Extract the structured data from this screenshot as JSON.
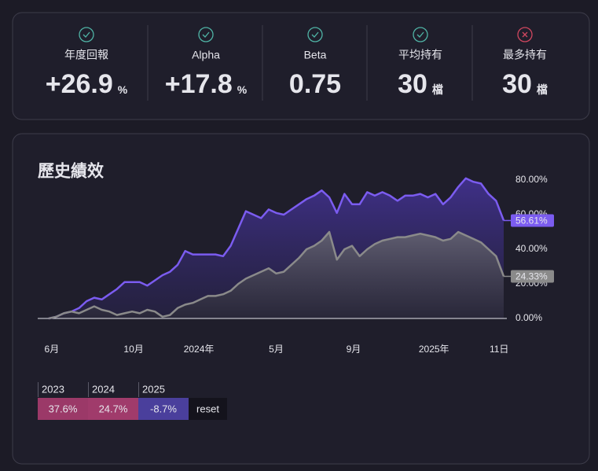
{
  "stats": [
    {
      "label": "年度回報",
      "value": "+26.9",
      "unit": "%",
      "status": "ok"
    },
    {
      "label": "Alpha",
      "value": "+17.8",
      "unit": "%",
      "status": "ok"
    },
    {
      "label": "Beta",
      "value": "0.75",
      "status": "ok"
    },
    {
      "label": "平均持有",
      "value": "30",
      "unit": "檔",
      "status": "ok"
    },
    {
      "label": "最多持有",
      "value": "30",
      "unit": "檔",
      "status": "fail"
    }
  ],
  "chart_data": {
    "type": "line",
    "title": "歷史績效",
    "x": [
      0,
      1,
      2,
      3,
      4,
      5,
      6,
      7,
      8,
      9,
      10,
      11,
      12,
      13,
      14,
      15,
      16,
      17,
      18,
      19,
      20,
      21,
      22,
      23,
      24,
      25,
      26,
      27,
      28,
      29,
      30,
      31,
      32,
      33,
      34,
      35,
      36,
      37,
      38,
      39,
      40,
      41,
      42,
      43,
      44,
      45,
      46,
      47,
      48,
      49,
      50,
      51,
      52,
      53,
      54,
      55,
      56,
      57,
      58,
      59,
      60
    ],
    "series": [
      {
        "color": "#7b5cf0",
        "end_label": "56.61%",
        "values": [
          0,
          1,
          3,
          4,
          6,
          10,
          12,
          11,
          14,
          17,
          21,
          21,
          21,
          19,
          22,
          25,
          27,
          31,
          39,
          37,
          37,
          37,
          37,
          36,
          42,
          52,
          62,
          60,
          58,
          63,
          61,
          60,
          63,
          66,
          69,
          71,
          74,
          70,
          61,
          72,
          66,
          66,
          73,
          71,
          73,
          71,
          68,
          71,
          71,
          72,
          70,
          72,
          66,
          70,
          76,
          81,
          79,
          78,
          72,
          68,
          56.61
        ]
      },
      {
        "color": "#8a8a8a",
        "end_label": "24.33%",
        "values": [
          0,
          1,
          3,
          4,
          3,
          5,
          7,
          5,
          4,
          2,
          3,
          4,
          3,
          5,
          4,
          1,
          2,
          6,
          8,
          9,
          11,
          13,
          13,
          14,
          16,
          20,
          23,
          25,
          27,
          29,
          26,
          27,
          31,
          35,
          40,
          42,
          45,
          50,
          34,
          40,
          42,
          36,
          40,
          43,
          45,
          46,
          47,
          47,
          48,
          49,
          48,
          47,
          45,
          46,
          50,
          48,
          46,
          44,
          40,
          36,
          24.33
        ]
      }
    ],
    "xlim": [
      0,
      60
    ],
    "xticks": [
      {
        "value": 0.4,
        "label": "6月"
      },
      {
        "value": 11.2,
        "label": "10月"
      },
      {
        "value": 19.8,
        "label": "2024年"
      },
      {
        "value": 30,
        "label": "5月"
      },
      {
        "value": 40.2,
        "label": "9月"
      },
      {
        "value": 50.8,
        "label": "2025年"
      },
      {
        "value": 59.4,
        "label": "11日"
      }
    ],
    "ylim": [
      -2,
      85
    ],
    "yticks": [
      {
        "value": 0,
        "label": "0.00%"
      },
      {
        "value": 20,
        "label": "20.00%"
      },
      {
        "value": 40,
        "label": "40.00%"
      },
      {
        "value": 60,
        "label": "60.00%"
      },
      {
        "value": 80,
        "label": "80.00%"
      }
    ]
  },
  "year_returns": [
    {
      "year": "2023",
      "value": "37.6%",
      "color": "#9b3968"
    },
    {
      "year": "2024",
      "value": "24.7%",
      "color": "#a03b6b"
    },
    {
      "year": "2025",
      "value": "-8.7%",
      "color": "#4a3f9c"
    }
  ],
  "reset_label": "reset"
}
